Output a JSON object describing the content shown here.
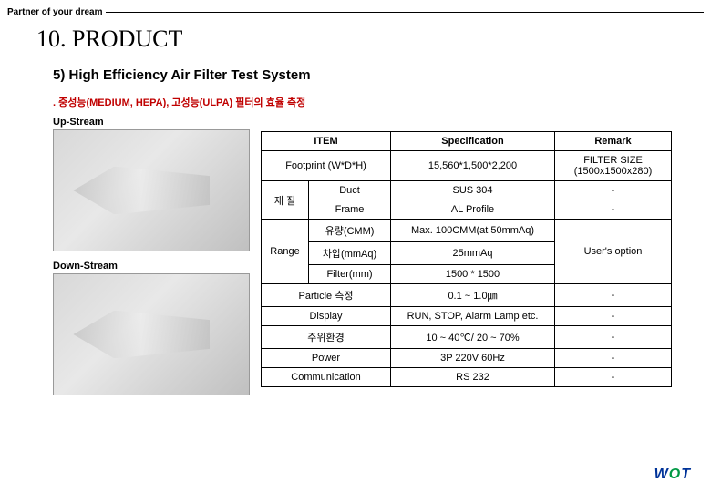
{
  "header": {
    "partner": "Partner of your dream",
    "section_title": "10. PRODUCT",
    "subtitle": "5) High Efficiency Air Filter Test System",
    "desc": ". 중성능(MEDIUM, HEPA),  고성능(ULPA) 필터의 효율 측정"
  },
  "left": {
    "upstream_label": "Up-Stream",
    "downstream_label": "Down-Stream"
  },
  "table": {
    "headers": {
      "item": "ITEM",
      "spec": "Specification",
      "remark": "Remark"
    },
    "rows": {
      "footprint": {
        "item": "Footprint (W*D*H)",
        "spec": "15,560*1,500*2,200",
        "remark": "FILTER SIZE (1500x1500x280)"
      },
      "material_label": "재 질",
      "duct": {
        "item": "Duct",
        "spec": "SUS 304",
        "remark": "-"
      },
      "frame": {
        "item": "Frame",
        "spec": "AL Profile",
        "remark": "-"
      },
      "range_label": "Range",
      "flow": {
        "item": "유량(CMM)",
        "spec": "Max. 100CMM(at 50mmAq)",
        "remark": ""
      },
      "dp": {
        "item": "차압(mmAq)",
        "spec": "25mmAq",
        "remark": "User's option"
      },
      "filter": {
        "item": "Filter(mm)",
        "spec": "1500 * 1500",
        "remark": ""
      },
      "particle": {
        "item": "Particle 측정",
        "spec": "0.1 ~ 1.0㎛",
        "remark": "-"
      },
      "display": {
        "item": "Display",
        "spec": "RUN, STOP, Alarm Lamp etc.",
        "remark": "-"
      },
      "env": {
        "item": "주위환경",
        "spec": "10 ~ 40℃/ 20 ~ 70%",
        "remark": "-"
      },
      "power": {
        "item": "Power",
        "spec": "3P  220V 60Hz",
        "remark": "-"
      },
      "comm": {
        "item": "Communication",
        "spec": "RS 232",
        "remark": "-"
      }
    }
  },
  "logo": {
    "w": "W",
    "o": "O",
    "t": "T"
  }
}
